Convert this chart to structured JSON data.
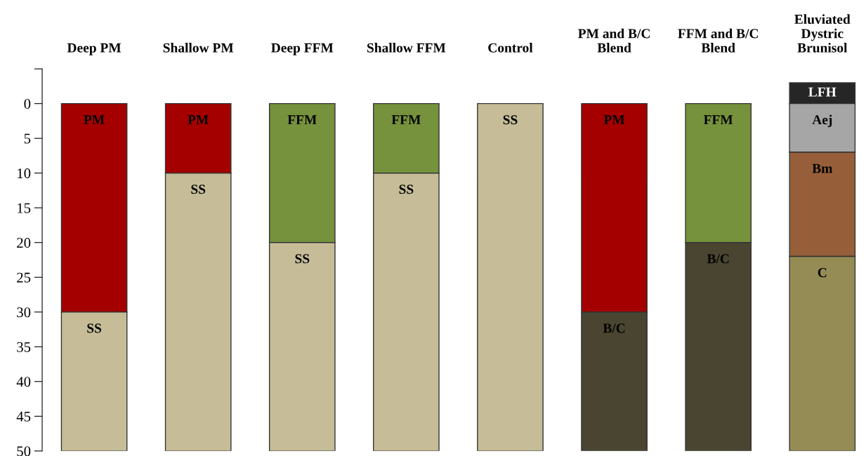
{
  "chart_data": {
    "type": "bar",
    "stacked": true,
    "categories": [
      "Deep PM",
      "Shallow PM",
      "Deep FFM",
      "Shallow FFM",
      "Control",
      "PM and B/C\nBlend",
      "FFM and B/C\nBlend",
      "Eluviated\nDystric\nBrunisol"
    ],
    "series": [
      {
        "name": "LFH",
        "color": "#262626",
        "values": [
          null,
          null,
          null,
          null,
          null,
          null,
          null,
          -3
        ]
      },
      {
        "name": "PM",
        "color": "#a50000",
        "values": [
          30,
          10,
          null,
          null,
          null,
          30,
          null,
          null
        ]
      },
      {
        "name": "FFM",
        "color": "#76923c",
        "values": [
          null,
          null,
          20,
          10,
          null,
          null,
          20,
          null
        ]
      },
      {
        "name": "Aej",
        "color": "#a6a6a6",
        "values": [
          null,
          null,
          null,
          null,
          null,
          null,
          null,
          7
        ]
      },
      {
        "name": "SS",
        "color": "#c6bd98",
        "values": [
          20,
          40,
          30,
          40,
          50,
          null,
          null,
          null
        ]
      },
      {
        "name": "B/C",
        "color": "#4a4530",
        "values": [
          null,
          null,
          null,
          null,
          null,
          20,
          30,
          null
        ]
      },
      {
        "name": "Bm",
        "color": "#965f3a",
        "values": [
          null,
          null,
          null,
          null,
          null,
          null,
          null,
          15
        ]
      },
      {
        "name": "C",
        "color": "#958c55",
        "values": [
          null,
          null,
          null,
          null,
          null,
          null,
          null,
          28
        ]
      }
    ],
    "ylim": [
      50,
      -5
    ],
    "yticks": [
      {
        "value": -5,
        "label": null
      },
      0,
      5,
      10,
      15,
      20,
      25,
      30,
      35,
      40,
      45,
      50
    ],
    "legend": false,
    "grid": false
  }
}
